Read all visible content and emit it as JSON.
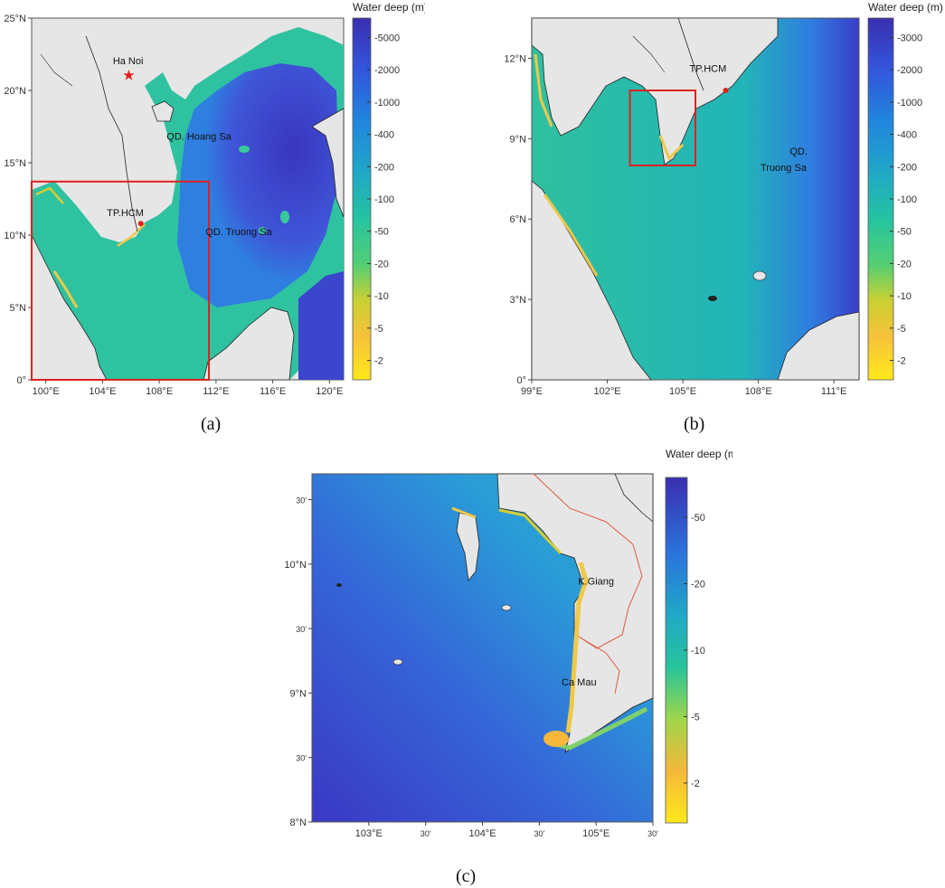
{
  "colorscale": {
    "title": "Water deep (m)",
    "colors": [
      "#ffe81a",
      "#f5c63a",
      "#d9c930",
      "#7dd46a",
      "#2fc493",
      "#22b4b8",
      "#1f8fd8",
      "#2f6be0",
      "#3c48d4",
      "#3a2fb0"
    ]
  },
  "panels": [
    {
      "id": "a",
      "caption": "(a)",
      "lon": [
        99,
        121
      ],
      "lat": [
        0,
        25
      ],
      "lon_ticks": [
        {
          "v": 100,
          "t": "100°E"
        },
        {
          "v": 104,
          "t": "104°E"
        },
        {
          "v": 108,
          "t": "108°E"
        },
        {
          "v": 112,
          "t": "112°E"
        },
        {
          "v": 116,
          "t": "116°E"
        },
        {
          "v": 120,
          "t": "120°E"
        }
      ],
      "lat_ticks": [
        {
          "v": 0,
          "t": "0°"
        },
        {
          "v": 5,
          "t": "5°N"
        },
        {
          "v": 10,
          "t": "10°N"
        },
        {
          "v": 15,
          "t": "15°N"
        },
        {
          "v": 20,
          "t": "20°N"
        },
        {
          "v": 25,
          "t": "25°N"
        }
      ],
      "colorbar_ticks": [
        "-5000",
        "-2000",
        "-1000",
        "-400",
        "-200",
        "-100",
        "-50",
        "-20",
        "-10",
        "-5",
        "-2"
      ],
      "labels": [
        {
          "text": "Ha Noi",
          "lon": 105.8,
          "lat": 21.8
        },
        {
          "text": "QD. Hoang Sa",
          "lon": 110.8,
          "lat": 16.6
        },
        {
          "text": "TP.HCM",
          "lon": 105.6,
          "lat": 11.3
        },
        {
          "text": "QD. Truong Sa",
          "lon": 113.6,
          "lat": 10.0
        }
      ],
      "markers": [
        {
          "type": "star",
          "lon": 105.85,
          "lat": 21.03
        },
        {
          "type": "dot",
          "lon": 106.7,
          "lat": 10.8
        }
      ],
      "box": {
        "lon": [
          99,
          111.5
        ],
        "lat": [
          0,
          13.7
        ]
      }
    },
    {
      "id": "b",
      "caption": "(b)",
      "lon": [
        99,
        112
      ],
      "lat": [
        0,
        13.5
      ],
      "lon_ticks": [
        {
          "v": 99,
          "t": "99°E"
        },
        {
          "v": 102,
          "t": "102°E"
        },
        {
          "v": 105,
          "t": "105°E"
        },
        {
          "v": 108,
          "t": "108°E"
        },
        {
          "v": 111,
          "t": "111°E"
        }
      ],
      "lat_ticks": [
        {
          "v": 0,
          "t": "0°"
        },
        {
          "v": 3,
          "t": "3°N"
        },
        {
          "v": 6,
          "t": "6°N"
        },
        {
          "v": 9,
          "t": "9°N"
        },
        {
          "v": 12,
          "t": "12°N"
        }
      ],
      "colorbar_ticks": [
        "-3000",
        "-2000",
        "-1000",
        "-400",
        "-200",
        "-100",
        "-50",
        "-20",
        "-10",
        "-5",
        "-2"
      ],
      "labels": [
        {
          "text": "TP.HCM",
          "lon": 106.0,
          "lat": 11.5
        },
        {
          "text": "QD.",
          "lon": 109.6,
          "lat": 8.4
        },
        {
          "text": "Truong Sa",
          "lon": 109.0,
          "lat": 7.8
        }
      ],
      "markers": [
        {
          "type": "dot",
          "lon": 106.7,
          "lat": 10.8
        }
      ],
      "box": {
        "lon": [
          102.9,
          105.5
        ],
        "lat": [
          8.0,
          10.8
        ]
      }
    },
    {
      "id": "c",
      "caption": "(c)",
      "lon": [
        102.5,
        105.5
      ],
      "lat": [
        8.0,
        10.7
      ],
      "lon_ticks": [
        {
          "v": 103,
          "t": "103°E"
        },
        {
          "v": 103.5,
          "t": "30'"
        },
        {
          "v": 104,
          "t": "104°E"
        },
        {
          "v": 104.5,
          "t": "30'"
        },
        {
          "v": 105,
          "t": "105°E"
        },
        {
          "v": 105.5,
          "t": "30'"
        }
      ],
      "lat_ticks": [
        {
          "v": 8.0,
          "t": "8°N"
        },
        {
          "v": 8.5,
          "t": "30'"
        },
        {
          "v": 9.0,
          "t": "9°N"
        },
        {
          "v": 9.5,
          "t": "30'"
        },
        {
          "v": 10.0,
          "t": "10°N"
        },
        {
          "v": 10.5,
          "t": "30'"
        }
      ],
      "colorbar_ticks": [
        "-50",
        "-20",
        "-10",
        "-5",
        "-2"
      ],
      "labels": [
        {
          "text": "K.Giang",
          "lon": 105.0,
          "lat": 9.84
        },
        {
          "text": "Ca Mau",
          "lon": 104.85,
          "lat": 9.06
        }
      ],
      "markers": [],
      "box": null
    }
  ]
}
